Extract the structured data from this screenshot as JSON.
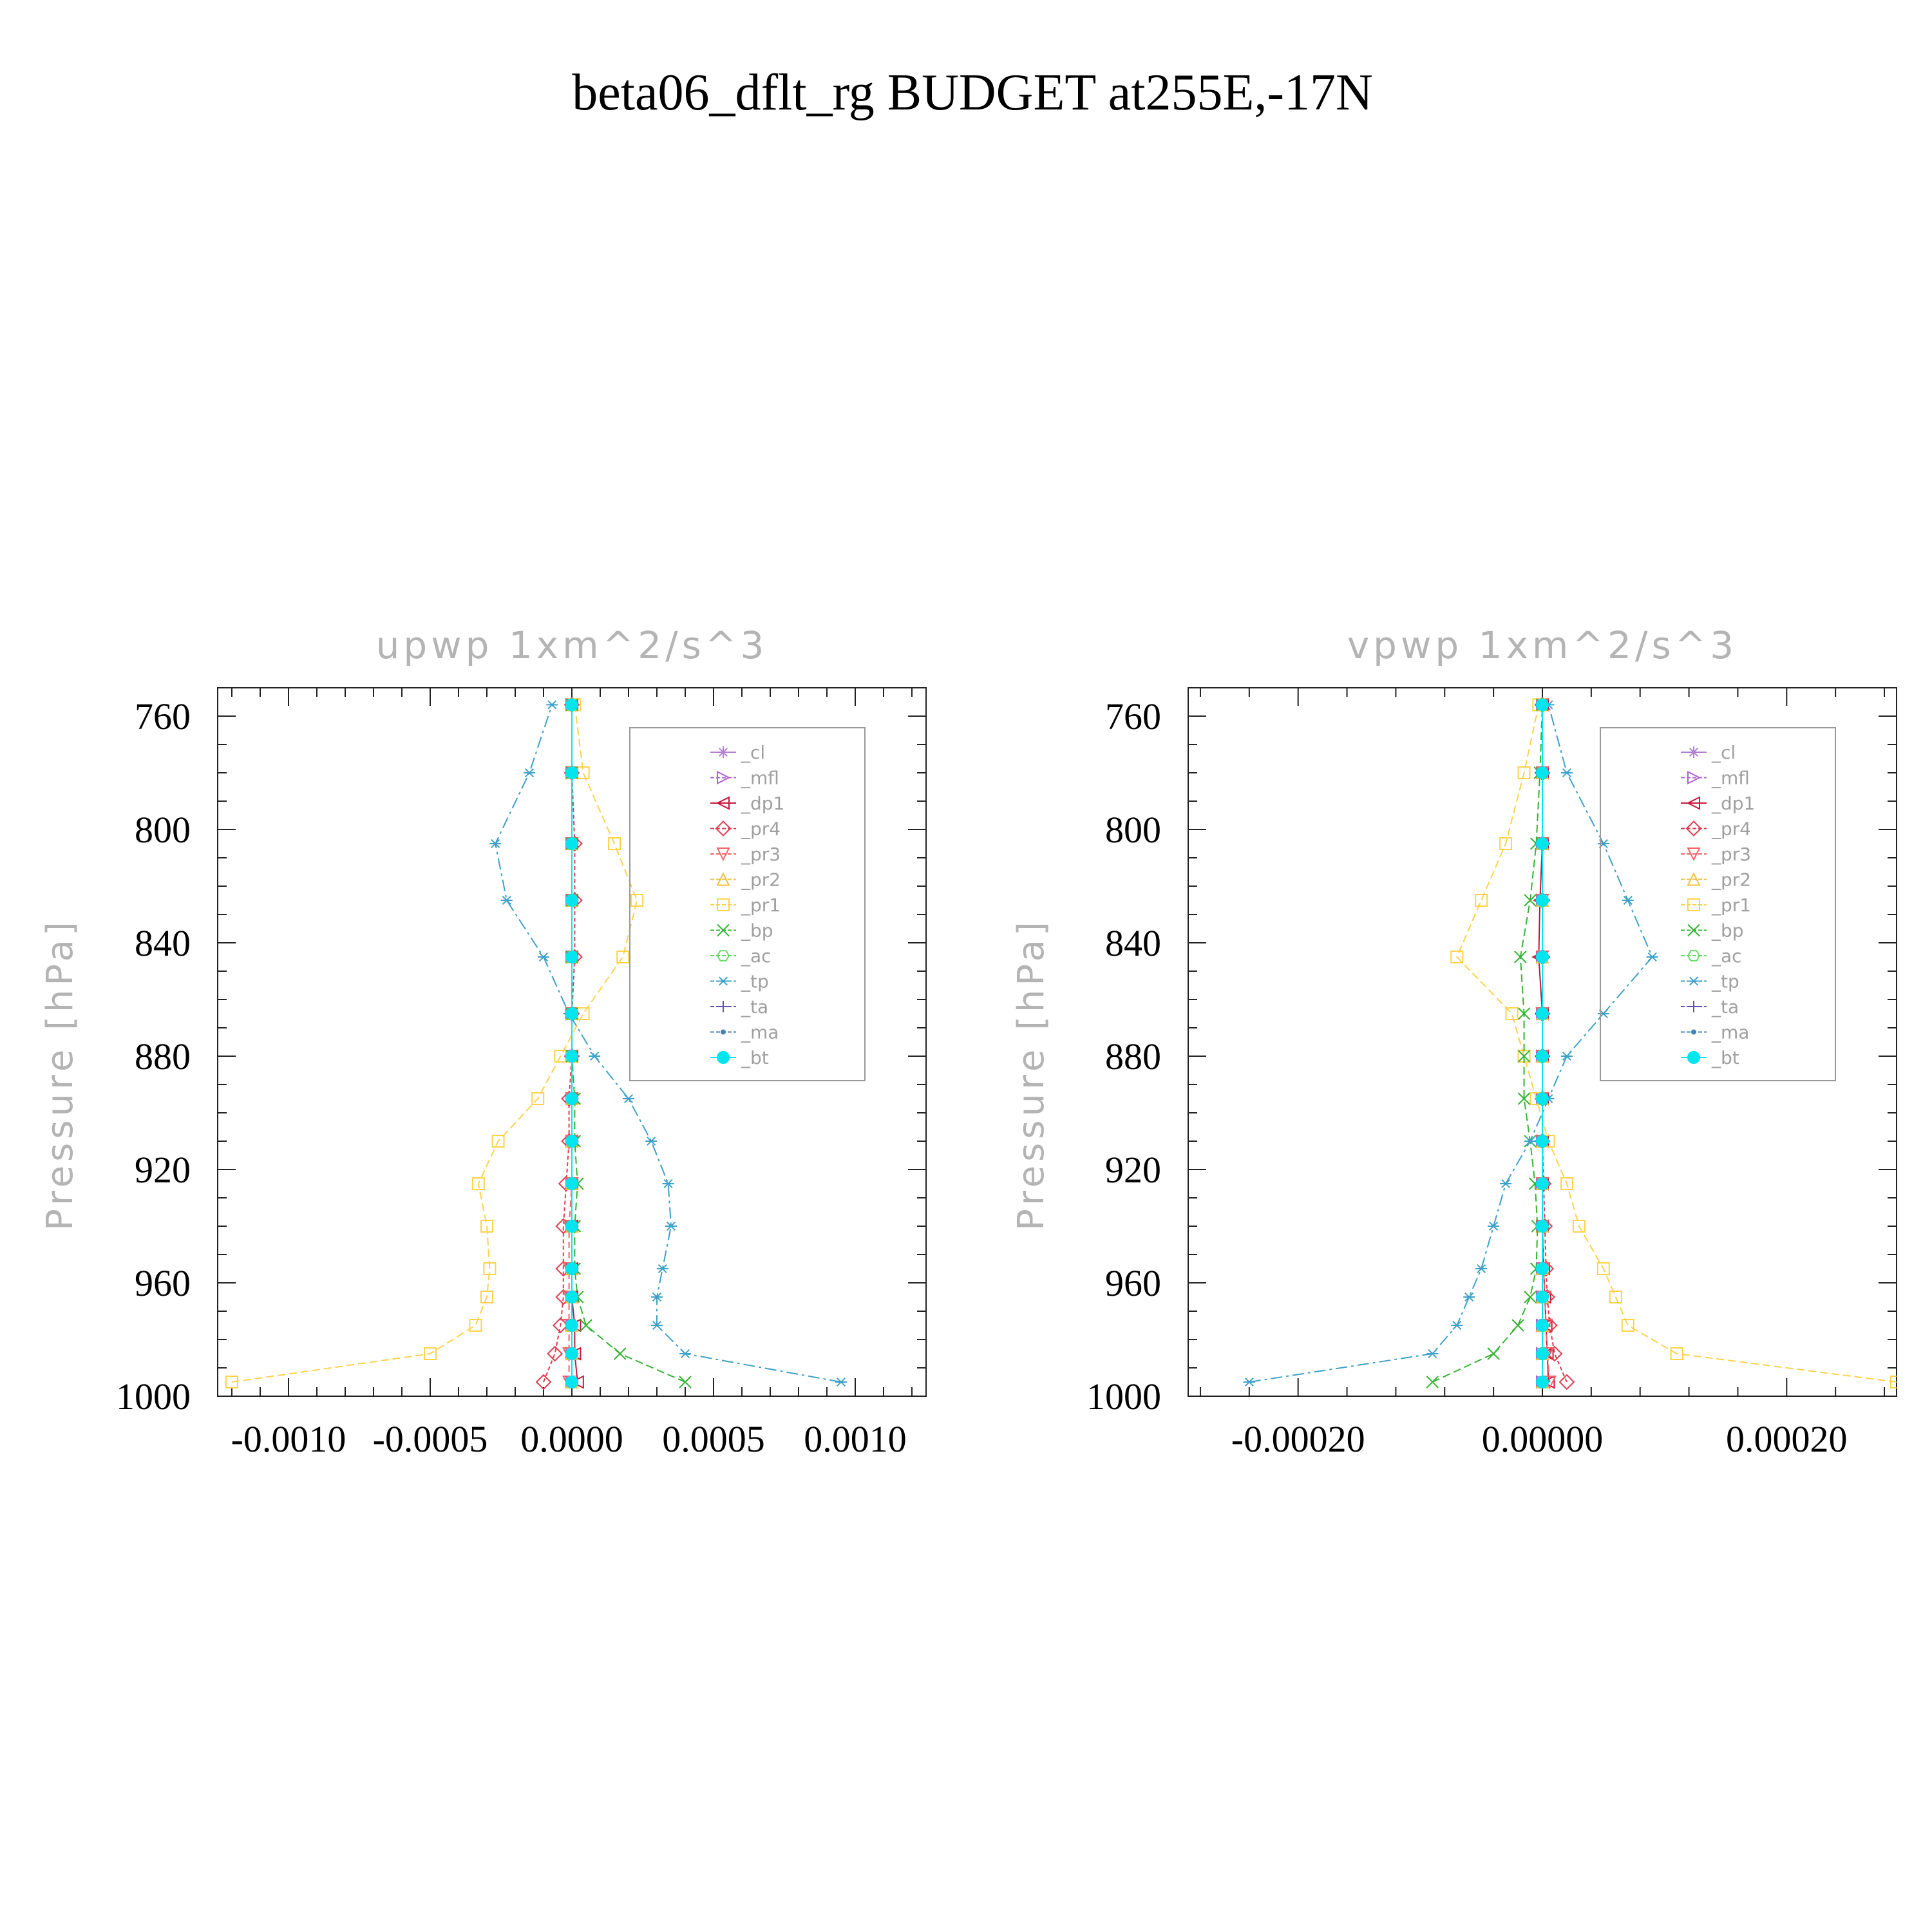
{
  "figure_title": "beta06_dflt_rg  BUDGET at255E,-17N",
  "colors": {
    "_cl": "#b37fd0",
    "_mfl": "#b05fd0",
    "_dp1": "#c8143c",
    "_pr4": "#dc3c50",
    "_pr3": "#f06464",
    "_pr2": "#f0c040",
    "_pr1": "#ffd24a",
    "_bp": "#32b432",
    "_ac": "#64dc64",
    "_tp": "#3ca0c8",
    "_ta": "#6450b4",
    "_ma": "#4682b4",
    "_bt": "#00e5ee"
  },
  "chart_data": [
    {
      "type": "line",
      "title": "upwp   1xm^2/s^3",
      "ylabel": "Pressure  [hPa]",
      "xlim": [
        -0.00125,
        0.00125
      ],
      "ylim": [
        1000,
        750
      ],
      "xticks": [
        -0.001,
        -0.0005,
        0.0,
        0.0005,
        0.001
      ],
      "xtick_labels": [
        "-0.0010",
        "-0.0005",
        "0.0000",
        "0.0005",
        "0.0010"
      ],
      "yticks": [
        760,
        800,
        840,
        880,
        920,
        960,
        1000
      ],
      "ytick_labels": [
        "760",
        "800",
        "840",
        "880",
        "920",
        "960",
        "1000"
      ],
      "legend_position": "upper-right",
      "y": [
        995,
        985,
        975,
        965,
        955,
        940,
        925,
        910,
        895,
        880,
        865,
        845,
        825,
        805,
        780,
        756
      ],
      "series": [
        {
          "name": "_cl",
          "marker": "star",
          "values": [
            0,
            0,
            0,
            0,
            0,
            0,
            0,
            0,
            0,
            0,
            0,
            0,
            0,
            0,
            0,
            0
          ]
        },
        {
          "name": "_mfl",
          "marker": "tri-right",
          "values": [
            0,
            0,
            0,
            0,
            0,
            0,
            0,
            0,
            0,
            0,
            0,
            0,
            0,
            0,
            0,
            0
          ]
        },
        {
          "name": "_dp1",
          "marker": "tri-left",
          "values": [
            2e-05,
            1e-05,
            1e-05,
            0,
            0,
            0,
            0,
            0,
            0,
            0,
            0,
            0,
            0,
            0,
            0,
            0
          ]
        },
        {
          "name": "_pr4",
          "marker": "diamond",
          "values": [
            -0.0001,
            -6e-05,
            -4e-05,
            -3e-05,
            -3e-05,
            -3e-05,
            -2e-05,
            -1e-05,
            -1e-05,
            0,
            0,
            1e-05,
            1e-05,
            1e-05,
            0,
            0
          ]
        },
        {
          "name": "_pr3",
          "marker": "tri-down",
          "values": [
            -1e-05,
            -1e-05,
            -1e-05,
            -1e-05,
            -1e-05,
            -1e-05,
            0,
            0,
            0,
            0,
            0,
            0,
            0,
            0,
            0,
            0
          ]
        },
        {
          "name": "_pr2",
          "marker": "tri-up",
          "values": [
            0,
            0,
            0,
            0,
            0,
            0,
            0,
            0,
            0,
            0,
            0,
            0,
            0,
            0,
            0,
            0
          ]
        },
        {
          "name": "_pr1",
          "marker": "square",
          "values": [
            -0.0012,
            -0.0005,
            -0.00034,
            -0.0003,
            -0.00029,
            -0.0003,
            -0.00033,
            -0.00026,
            -0.00012,
            -4e-05,
            4e-05,
            0.00018,
            0.00023,
            0.00015,
            4e-05,
            1e-05
          ]
        },
        {
          "name": "_bp",
          "marker": "x",
          "values": [
            0.0004,
            0.00017,
            5e-05,
            2e-05,
            1e-05,
            1e-05,
            2e-05,
            1e-05,
            1e-05,
            0,
            0,
            0,
            0,
            0,
            0,
            0
          ]
        },
        {
          "name": "_ac",
          "marker": "hexagon",
          "values": [
            0,
            0,
            0,
            0,
            0,
            0,
            0,
            0,
            0,
            0,
            0,
            0,
            0,
            0,
            0,
            0
          ]
        },
        {
          "name": "_tp",
          "marker": "asterisk",
          "values": [
            0.00095,
            0.0004,
            0.0003,
            0.0003,
            0.00032,
            0.00035,
            0.00034,
            0.00028,
            0.0002,
            8e-05,
            -1e-05,
            -0.0001,
            -0.00023,
            -0.00027,
            -0.00015,
            -7e-05
          ]
        },
        {
          "name": "_ta",
          "marker": "plus",
          "values": [
            0,
            0,
            0,
            0,
            0,
            0,
            0,
            0,
            0,
            0,
            0,
            0,
            0,
            0,
            0,
            0
          ]
        },
        {
          "name": "_ma",
          "marker": "dot",
          "values": [
            0,
            0,
            0,
            0,
            0,
            0,
            0,
            0,
            0,
            0,
            0,
            0,
            0,
            0,
            0,
            0
          ]
        },
        {
          "name": "_bt",
          "marker": "circle",
          "values": [
            0,
            0,
            0,
            0,
            0,
            0,
            0,
            0,
            0,
            0,
            0,
            0,
            0,
            0,
            0,
            0
          ]
        }
      ]
    },
    {
      "type": "line",
      "title": "vpwp   1xm^2/s^3",
      "ylabel": "Pressure  [hPa]",
      "xlim": [
        -0.00029,
        0.00029
      ],
      "ylim": [
        1000,
        750
      ],
      "xticks": [
        -0.0002,
        0.0,
        0.0002
      ],
      "xtick_labels": [
        "-0.00020",
        "0.00000",
        "0.00020"
      ],
      "yticks": [
        760,
        800,
        840,
        880,
        920,
        960,
        1000
      ],
      "ytick_labels": [
        "760",
        "800",
        "840",
        "880",
        "920",
        "960",
        "1000"
      ],
      "legend_position": "upper-right",
      "y": [
        995,
        985,
        975,
        965,
        955,
        940,
        925,
        910,
        895,
        880,
        865,
        845,
        825,
        805,
        780,
        756
      ],
      "series": [
        {
          "name": "_cl",
          "marker": "star",
          "values": [
            0,
            0,
            0,
            0,
            0,
            0,
            0,
            0,
            0,
            0,
            0,
            0,
            0,
            0,
            0,
            0
          ]
        },
        {
          "name": "_mfl",
          "marker": "tri-right",
          "values": [
            0,
            0,
            0,
            0,
            0,
            0,
            0,
            0,
            0,
            0,
            0,
            0,
            0,
            0,
            0,
            0
          ]
        },
        {
          "name": "_dp1",
          "marker": "tri-left",
          "values": [
            5e-06,
            4e-06,
            3e-06,
            2e-06,
            1e-06,
            0,
            0,
            0,
            0,
            0,
            0,
            -3e-06,
            -2e-06,
            0,
            0,
            0
          ]
        },
        {
          "name": "_pr4",
          "marker": "diamond",
          "values": [
            2e-05,
            1e-05,
            6e-06,
            4e-06,
            3e-06,
            2e-06,
            1e-06,
            0,
            0,
            0,
            0,
            0,
            0,
            0,
            0,
            0
          ]
        },
        {
          "name": "_pr3",
          "marker": "tri-down",
          "values": [
            6e-06,
            4e-06,
            3e-06,
            2e-06,
            1e-06,
            0,
            0,
            0,
            0,
            0,
            0,
            0,
            0,
            0,
            0,
            0
          ]
        },
        {
          "name": "_pr2",
          "marker": "tri-up",
          "values": [
            0,
            0,
            0,
            0,
            0,
            0,
            0,
            0,
            0,
            0,
            0,
            0,
            0,
            0,
            0,
            0
          ]
        },
        {
          "name": "_pr1",
          "marker": "square",
          "values": [
            0.00029,
            0.00011,
            7e-05,
            6e-05,
            5e-05,
            3e-05,
            2e-05,
            5e-06,
            -5e-06,
            -1.5e-05,
            -2.5e-05,
            -7e-05,
            -5e-05,
            -3e-05,
            -1.5e-05,
            -3e-06
          ]
        },
        {
          "name": "_bp",
          "marker": "x",
          "values": [
            -9e-05,
            -4e-05,
            -2e-05,
            -1e-05,
            -5e-06,
            -4e-06,
            -6e-06,
            -1e-05,
            -1.5e-05,
            -1.5e-05,
            -1.5e-05,
            -1.8e-05,
            -1e-05,
            -5e-06,
            -2e-06,
            0
          ]
        },
        {
          "name": "_ac",
          "marker": "hexagon",
          "values": [
            0,
            0,
            0,
            0,
            0,
            0,
            0,
            0,
            0,
            0,
            0,
            0,
            0,
            0,
            0,
            0
          ]
        },
        {
          "name": "_tp",
          "marker": "asterisk",
          "values": [
            -0.00024,
            -9e-05,
            -7e-05,
            -6e-05,
            -5e-05,
            -4e-05,
            -3e-05,
            -1e-05,
            5e-06,
            2e-05,
            5e-05,
            9e-05,
            7e-05,
            5e-05,
            2e-05,
            5e-06
          ]
        },
        {
          "name": "_ta",
          "marker": "plus",
          "values": [
            0,
            0,
            0,
            0,
            0,
            0,
            0,
            0,
            0,
            0,
            0,
            0,
            0,
            0,
            0,
            0
          ]
        },
        {
          "name": "_ma",
          "marker": "dot",
          "values": [
            0,
            0,
            0,
            0,
            0,
            0,
            0,
            0,
            0,
            0,
            0,
            0,
            0,
            0,
            0,
            0
          ]
        },
        {
          "name": "_bt",
          "marker": "circle",
          "values": [
            0,
            0,
            0,
            0,
            0,
            0,
            0,
            0,
            0,
            0,
            0,
            0,
            0,
            0,
            0,
            0
          ]
        }
      ]
    }
  ]
}
